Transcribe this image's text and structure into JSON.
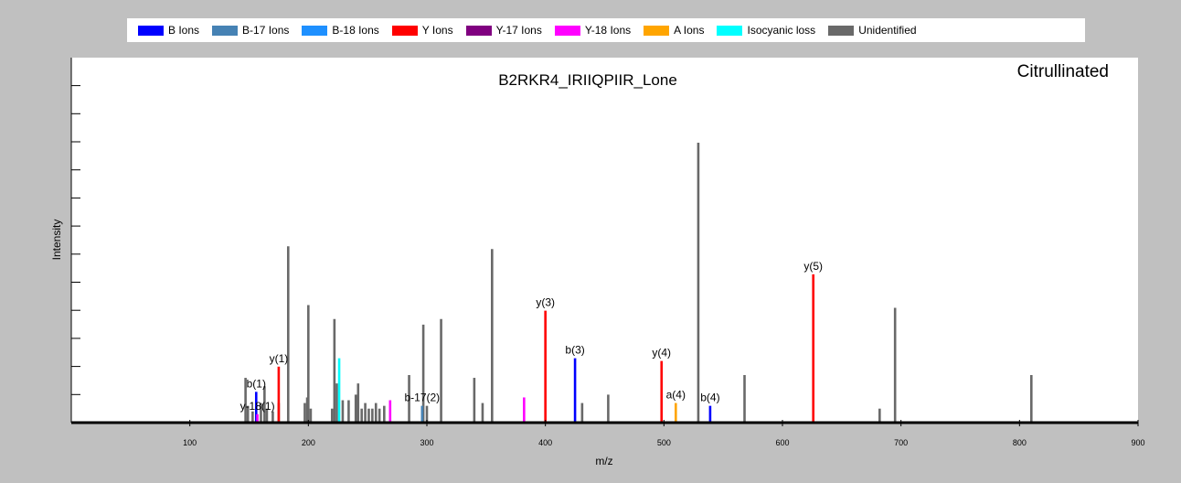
{
  "legend": [
    {
      "label": "B Ions",
      "color": "#0000ff"
    },
    {
      "label": "B-17 Ions",
      "color": "#4682b4"
    },
    {
      "label": "B-18 Ions",
      "color": "#1e90ff"
    },
    {
      "label": "Y Ions",
      "color": "#ff0000"
    },
    {
      "label": "Y-17 Ions",
      "color": "#800080"
    },
    {
      "label": "Y-18 Ions",
      "color": "#ff00ff"
    },
    {
      "label": "A Ions",
      "color": "#ffa500"
    },
    {
      "label": "Isocyanic loss",
      "color": "#00ffff"
    },
    {
      "label": "Unidentified",
      "color": "#696969"
    }
  ],
  "chart_data": {
    "type": "bar",
    "title": "B2RKR4_IRIIQPIIR_Lone",
    "subtitle": "Citrullinated",
    "xlabel": "m/z",
    "ylabel": "Intensity",
    "xlim": [
      0,
      900
    ],
    "ylim": [
      0,
      100
    ],
    "xticks": [
      100,
      200,
      300,
      400,
      500,
      600,
      700,
      800,
      900
    ],
    "grid": false,
    "legend_position": "top",
    "series": [
      {
        "name": "Unidentified",
        "color": "#696969",
        "peaks": [
          {
            "x": 147,
            "y": 16
          },
          {
            "x": 149,
            "y": 6
          },
          {
            "x": 153,
            "y": 4
          },
          {
            "x": 160,
            "y": 7
          },
          {
            "x": 163,
            "y": 13
          },
          {
            "x": 165,
            "y": 5
          },
          {
            "x": 170,
            "y": 4
          },
          {
            "x": 175,
            "y": 7
          },
          {
            "x": 183,
            "y": 63
          },
          {
            "x": 197,
            "y": 7
          },
          {
            "x": 199,
            "y": 9
          },
          {
            "x": 200,
            "y": 42
          },
          {
            "x": 202,
            "y": 5
          },
          {
            "x": 220,
            "y": 5
          },
          {
            "x": 222,
            "y": 37
          },
          {
            "x": 224,
            "y": 14
          },
          {
            "x": 229,
            "y": 8
          },
          {
            "x": 234,
            "y": 8
          },
          {
            "x": 240,
            "y": 10
          },
          {
            "x": 242,
            "y": 14
          },
          {
            "x": 245,
            "y": 5
          },
          {
            "x": 248,
            "y": 7
          },
          {
            "x": 251,
            "y": 5
          },
          {
            "x": 254,
            "y": 5
          },
          {
            "x": 257,
            "y": 7
          },
          {
            "x": 260,
            "y": 5
          },
          {
            "x": 264,
            "y": 6
          },
          {
            "x": 285,
            "y": 17
          },
          {
            "x": 297,
            "y": 35
          },
          {
            "x": 300,
            "y": 6
          },
          {
            "x": 312,
            "y": 37
          },
          {
            "x": 340,
            "y": 16
          },
          {
            "x": 347,
            "y": 7
          },
          {
            "x": 355,
            "y": 62
          },
          {
            "x": 431,
            "y": 7
          },
          {
            "x": 453,
            "y": 10
          },
          {
            "x": 529,
            "y": 100
          },
          {
            "x": 568,
            "y": 17
          },
          {
            "x": 682,
            "y": 5
          },
          {
            "x": 695,
            "y": 41
          },
          {
            "x": 810,
            "y": 17
          }
        ]
      },
      {
        "name": "B Ions",
        "color": "#0000ff",
        "peaks": [
          {
            "x": 156,
            "y": 11,
            "label": "b(1)"
          },
          {
            "x": 425,
            "y": 23,
            "label": "b(3)"
          },
          {
            "x": 539,
            "y": 6,
            "label": "b(4)"
          }
        ]
      },
      {
        "name": "B-17 Ions",
        "color": "#4682b4",
        "peaks": [
          {
            "x": 296,
            "y": 6,
            "label": "b-17(2)"
          }
        ]
      },
      {
        "name": "Y Ions",
        "color": "#ff0000",
        "peaks": [
          {
            "x": 175,
            "y": 20,
            "label": "y(1)"
          },
          {
            "x": 400,
            "y": 40,
            "label": "y(3)"
          },
          {
            "x": 498,
            "y": 22,
            "label": "y(4)"
          },
          {
            "x": 626,
            "y": 53,
            "label": "y(5)"
          }
        ]
      },
      {
        "name": "Y-18 Ions",
        "color": "#ff00ff",
        "peaks": [
          {
            "x": 157,
            "y": 3,
            "label": "y-18(1)"
          },
          {
            "x": 269,
            "y": 8
          },
          {
            "x": 382,
            "y": 9
          }
        ]
      },
      {
        "name": "A Ions",
        "color": "#ffa500",
        "peaks": [
          {
            "x": 510,
            "y": 7,
            "label": "a(4)"
          }
        ]
      },
      {
        "name": "Isocyanic loss",
        "color": "#00ffff",
        "peaks": [
          {
            "x": 226,
            "y": 23
          }
        ]
      }
    ]
  }
}
